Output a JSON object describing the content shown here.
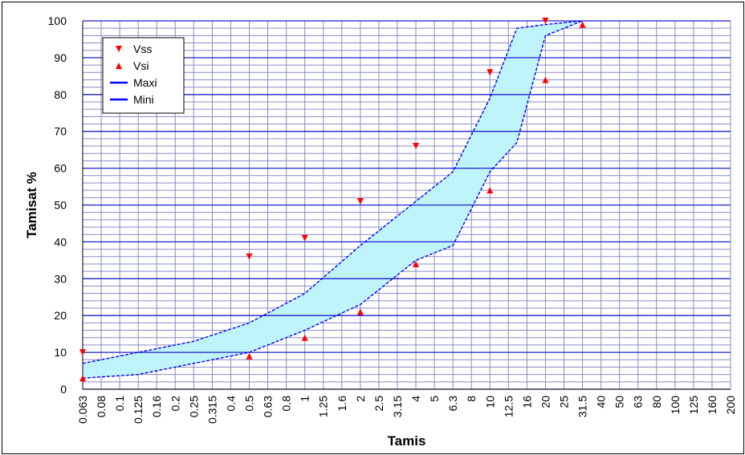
{
  "chart_data": {
    "type": "line",
    "xlabel": "Tamis",
    "ylabel": "Tamisat %",
    "ylim": [
      0,
      100
    ],
    "yticks": [
      0,
      10,
      20,
      30,
      40,
      50,
      60,
      70,
      80,
      90,
      100
    ],
    "categories": [
      "0.063",
      "0.08",
      "0.1",
      "0.125",
      "0.16",
      "0.2",
      "0.25",
      "0.315",
      "0.4",
      "0.5",
      "0.63",
      "0.8",
      "1",
      "1.25",
      "1.6",
      "2",
      "2.5",
      "3.15",
      "4",
      "5",
      "6.3",
      "8",
      "10",
      "12.5",
      "16",
      "20",
      "25",
      "31.5",
      "40",
      "50",
      "63",
      "80",
      "100",
      "125",
      "160",
      "200"
    ],
    "grid": true,
    "legend_position": "top-left",
    "series": [
      {
        "name": "Vss",
        "kind": "marker",
        "marker": "triangle-down",
        "color": "#ff0000",
        "x": [
          "0.063",
          "0.5",
          "1",
          "2",
          "4",
          "10",
          "20"
        ],
        "values": [
          10,
          36,
          41,
          51,
          66,
          86,
          100
        ]
      },
      {
        "name": "Vsi",
        "kind": "marker",
        "marker": "triangle-up",
        "color": "#ff0000",
        "x": [
          "0.063",
          "0.5",
          "1",
          "2",
          "4",
          "10",
          "20",
          "31.5"
        ],
        "values": [
          3,
          9,
          14,
          21,
          34,
          54,
          84,
          99
        ]
      },
      {
        "name": "Maxi",
        "kind": "line",
        "color": "#0000ff",
        "x": [
          "0.063",
          "0.125",
          "0.25",
          "0.5",
          "1",
          "2",
          "4",
          "6.3",
          "10",
          "14",
          "20",
          "31.5"
        ],
        "values": [
          7,
          10,
          13,
          18,
          26,
          39,
          51,
          59,
          79,
          98,
          99,
          100
        ]
      },
      {
        "name": "Mini",
        "kind": "line",
        "color": "#0000ff",
        "x": [
          "0.063",
          "0.125",
          "0.25",
          "0.5",
          "1",
          "2",
          "4",
          "6.3",
          "10",
          "14",
          "20",
          "31.5"
        ],
        "values": [
          3,
          4,
          7,
          10,
          16,
          23,
          35,
          39,
          59,
          67,
          96,
          100
        ]
      }
    ],
    "colors": {
      "band_fill": "#bff4fb",
      "grid_major": "#1c22c8",
      "grid_minor": "#8a8ac8",
      "marker": "#ff0000",
      "line": "#0000ff"
    }
  }
}
